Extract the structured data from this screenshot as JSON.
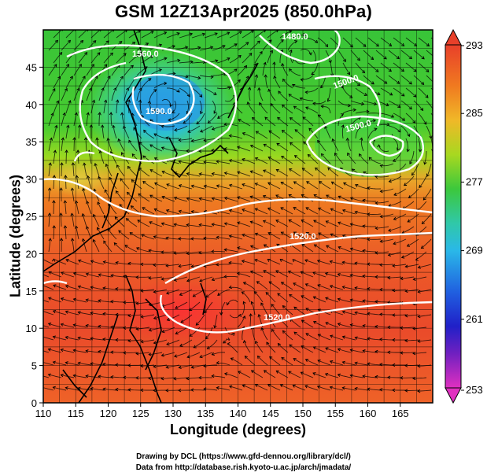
{
  "title": "GSM 12Z13Apr2025 (850.0hPa)",
  "axes": {
    "xlabel": "Longitude (degrees)",
    "ylabel": "Latitude  (degrees)",
    "xticks": [
      "110",
      "115",
      "120",
      "125",
      "130",
      "135",
      "140",
      "145",
      "150",
      "155",
      "160",
      "165"
    ],
    "yticks": [
      "0",
      "5",
      "10",
      "15",
      "20",
      "25",
      "30",
      "35",
      "40",
      "45"
    ]
  },
  "colorbar": {
    "labels": [
      "293",
      "285",
      "277",
      "269",
      "261",
      "253"
    ]
  },
  "contour_labels": [
    "1560.0",
    "1590.0",
    "1500.0",
    "1500.0",
    "1480.0",
    "1520.0",
    "1520.0"
  ],
  "credits": [
    "Drawing by DCL (https://www.gfd-dennou.org/library/dcl/)",
    "Data from http://database.rish.kyoto-u.ac.jp/arch/jmadata/"
  ],
  "chart_data": {
    "type": "heatmap",
    "title": "GSM 12Z13Apr2025 (850.0hPa)",
    "xlabel": "Longitude (degrees)",
    "ylabel": "Latitude  (degrees)",
    "xlim": [
      110,
      170
    ],
    "ylim": [
      0,
      50
    ],
    "color_range": [
      253,
      293
    ],
    "colorbar_ticks": [
      253,
      261,
      269,
      277,
      285,
      293
    ],
    "colors": {
      "warm": "#e8452a",
      "orange": "#f2781f",
      "green": "#3cc832",
      "cyan": "#28c8c8",
      "blue": "#1f9be0",
      "contour": "#ffffff",
      "streamline": "#000000"
    },
    "overlays": [
      "temperature shading",
      "geopotential height contours",
      "wind streamlines",
      "coastlines"
    ]
  }
}
